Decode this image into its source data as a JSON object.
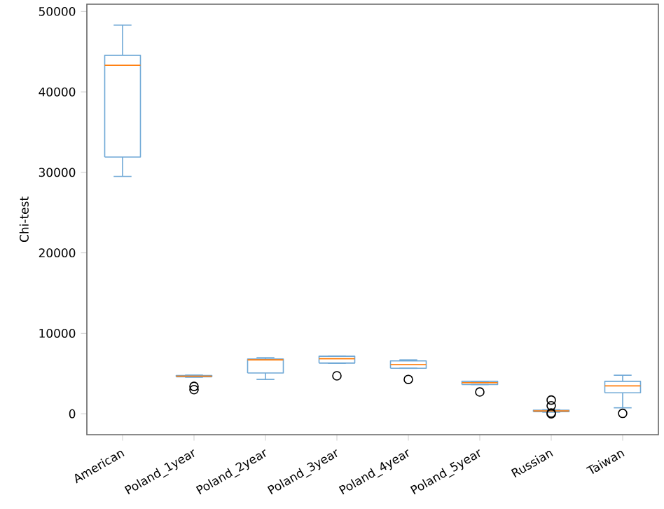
{
  "chart_data": {
    "type": "box",
    "ylabel": "Chi-test",
    "categories": [
      "American",
      "Poland_1year",
      "Poland_2year",
      "Poland_3year",
      "Poland_4year",
      "Poland_5year",
      "Russian",
      "Taiwan"
    ],
    "color": "#6fa8d6",
    "boxes": [
      {
        "low": 29500,
        "q1": 31900,
        "median": 43300,
        "q3": 44550,
        "high": 48300
      },
      {
        "low": 4550,
        "q1": 4600,
        "median": 4670,
        "q3": 4750,
        "high": 4800,
        "outliers": [
          3400,
          3000
        ]
      },
      {
        "low": 4270,
        "q1": 5070,
        "median": 6700,
        "q3": 6800,
        "high": 6970
      },
      {
        "low": 6280,
        "q1": 6300,
        "median": 6850,
        "q3": 7150,
        "high": 7150,
        "outliers": [
          4720
        ]
      },
      {
        "low": 5650,
        "q1": 5650,
        "median": 6110,
        "q3": 6570,
        "high": 6700,
        "outliers": [
          4270
        ]
      },
      {
        "low": 3630,
        "q1": 3630,
        "median": 3860,
        "q3": 4030,
        "high": 4030,
        "outliers": [
          2710
        ]
      },
      {
        "low": 200,
        "q1": 250,
        "median": 350,
        "q3": 450,
        "high": 500,
        "outliers": [
          1700,
          1000,
          100,
          0
        ]
      },
      {
        "low": 740,
        "q1": 2600,
        "median": 3460,
        "q3": 4030,
        "high": 4790,
        "outliers": [
          50
        ]
      }
    ],
    "ylim": [
      -2600,
      50900
    ],
    "yticks": [
      0,
      10000,
      20000,
      30000,
      40000,
      50000
    ]
  }
}
